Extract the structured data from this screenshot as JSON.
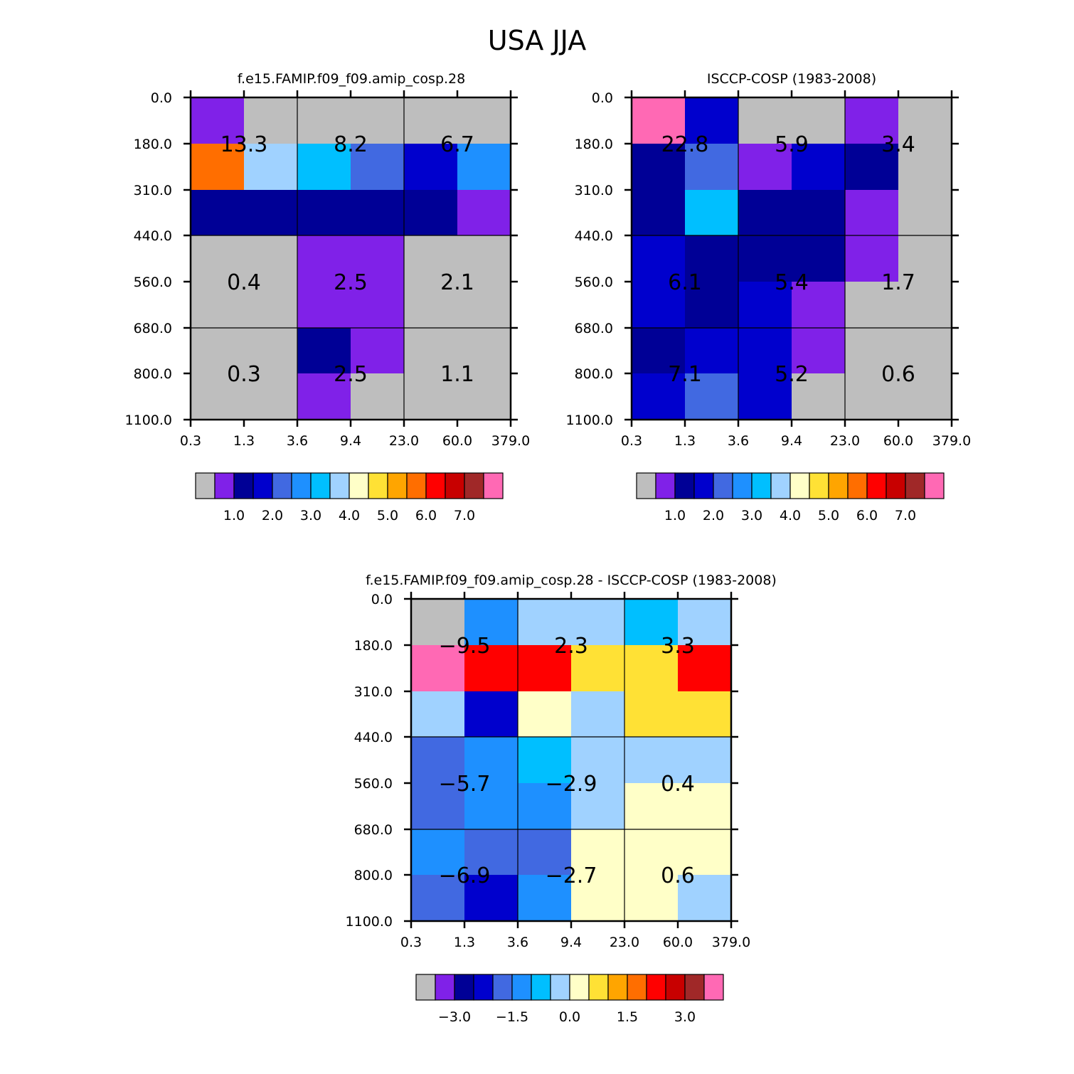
{
  "title": "USA JJA",
  "chart_data": [
    {
      "type": "heatmap",
      "title": "f.e15.FAMIP.f09_f09.amip_cosp.28",
      "x_ticks": [
        "0.3",
        "1.3",
        "3.6",
        "9.4",
        "23.0",
        "60.0",
        "379.0"
      ],
      "y_ticks": [
        "0.0",
        "180.0",
        "310.0",
        "440.0",
        "560.0",
        "680.0",
        "800.0",
        "1100.0"
      ],
      "cells": [
        [
          1,
          0,
          0,
          0,
          0,
          0
        ],
        [
          11,
          7,
          6,
          4,
          3,
          5
        ],
        [
          2,
          2,
          2,
          2,
          2,
          1
        ],
        [
          0,
          0,
          1,
          1,
          0,
          0
        ],
        [
          0,
          0,
          1,
          1,
          0,
          0
        ],
        [
          0,
          0,
          2,
          1,
          0,
          0
        ],
        [
          0,
          0,
          1,
          0,
          0,
          0
        ]
      ],
      "group_labels": [
        {
          "col": 1,
          "row": 1,
          "text": "13.3"
        },
        {
          "col": 3,
          "row": 1,
          "text": "8.2"
        },
        {
          "col": 5,
          "row": 1,
          "text": "6.7"
        },
        {
          "col": 1,
          "row": 4,
          "text": "0.4"
        },
        {
          "col": 3,
          "row": 4,
          "text": "2.5"
        },
        {
          "col": 5,
          "row": 4,
          "text": "2.1"
        },
        {
          "col": 1,
          "row": 6,
          "text": "0.3"
        },
        {
          "col": 3,
          "row": 6,
          "text": "2.5"
        },
        {
          "col": 5,
          "row": 6,
          "text": "1.1"
        }
      ],
      "colorbar_labels": [
        "1.0",
        "2.0",
        "3.0",
        "4.0",
        "5.0",
        "6.0",
        "7.0"
      ]
    },
    {
      "type": "heatmap",
      "title": "ISCCP-COSP (1983-2008)",
      "x_ticks": [
        "0.3",
        "1.3",
        "3.6",
        "9.4",
        "23.0",
        "60.0",
        "379.0"
      ],
      "y_ticks": [
        "0.0",
        "180.0",
        "310.0",
        "440.0",
        "560.0",
        "680.0",
        "800.0",
        "1100.0"
      ],
      "cells": [
        [
          15,
          3,
          0,
          0,
          1,
          0
        ],
        [
          2,
          4,
          1,
          3,
          2,
          0
        ],
        [
          2,
          6,
          2,
          2,
          1,
          0
        ],
        [
          3,
          2,
          2,
          2,
          1,
          0
        ],
        [
          3,
          2,
          3,
          1,
          0,
          0
        ],
        [
          2,
          3,
          3,
          1,
          0,
          0
        ],
        [
          3,
          4,
          3,
          0,
          0,
          0
        ]
      ],
      "group_labels": [
        {
          "col": 1,
          "row": 1,
          "text": "22.8"
        },
        {
          "col": 3,
          "row": 1,
          "text": "5.9"
        },
        {
          "col": 5,
          "row": 1,
          "text": "3.4"
        },
        {
          "col": 1,
          "row": 4,
          "text": "6.1"
        },
        {
          "col": 3,
          "row": 4,
          "text": "5.4"
        },
        {
          "col": 5,
          "row": 4,
          "text": "1.7"
        },
        {
          "col": 1,
          "row": 6,
          "text": "7.1"
        },
        {
          "col": 3,
          "row": 6,
          "text": "5.2"
        },
        {
          "col": 5,
          "row": 6,
          "text": "0.6"
        }
      ],
      "colorbar_labels": [
        "1.0",
        "2.0",
        "3.0",
        "4.0",
        "5.0",
        "6.0",
        "7.0"
      ]
    },
    {
      "type": "heatmap",
      "title": "f.e15.FAMIP.f09_f09.amip_cosp.28 - ISCCP-COSP (1983-2008)",
      "x_ticks": [
        "0.3",
        "1.3",
        "3.6",
        "9.4",
        "23.0",
        "60.0",
        "379.0"
      ],
      "y_ticks": [
        "0.0",
        "180.0",
        "310.0",
        "440.0",
        "560.0",
        "680.0",
        "800.0",
        "1100.0"
      ],
      "cells": [
        [
          0,
          5,
          7,
          7,
          6,
          7
        ],
        [
          15,
          12,
          12,
          9,
          9,
          12
        ],
        [
          7,
          3,
          8,
          7,
          9,
          9
        ],
        [
          4,
          5,
          6,
          7,
          7,
          7
        ],
        [
          4,
          5,
          5,
          7,
          8,
          8
        ],
        [
          5,
          4,
          4,
          8,
          8,
          8
        ],
        [
          4,
          3,
          5,
          8,
          8,
          7
        ]
      ],
      "group_labels": [
        {
          "col": 1,
          "row": 1,
          "text": "-9.5"
        },
        {
          "col": 3,
          "row": 1,
          "text": "2.3"
        },
        {
          "col": 5,
          "row": 1,
          "text": "3.3"
        },
        {
          "col": 1,
          "row": 4,
          "text": "-5.7"
        },
        {
          "col": 3,
          "row": 4,
          "text": "-2.9"
        },
        {
          "col": 5,
          "row": 4,
          "text": "0.4"
        },
        {
          "col": 1,
          "row": 6,
          "text": "-6.9"
        },
        {
          "col": 3,
          "row": 6,
          "text": "-2.7"
        },
        {
          "col": 5,
          "row": 6,
          "text": "0.6"
        }
      ],
      "colorbar_labels": [
        "-3.0",
        "-1.5",
        "0.0",
        "1.5",
        "3.0"
      ]
    }
  ],
  "palette": [
    "#BEBEBE",
    "#8021E8",
    "#000096",
    "#0000CD",
    "#4169E1",
    "#1E90FF",
    "#00BFFF",
    "#A0D2FF",
    "#FFFFC8",
    "#FFE135",
    "#FFA500",
    "#FF6E00",
    "#FF0000",
    "#C80000",
    "#A02828",
    "#FF69B4"
  ]
}
